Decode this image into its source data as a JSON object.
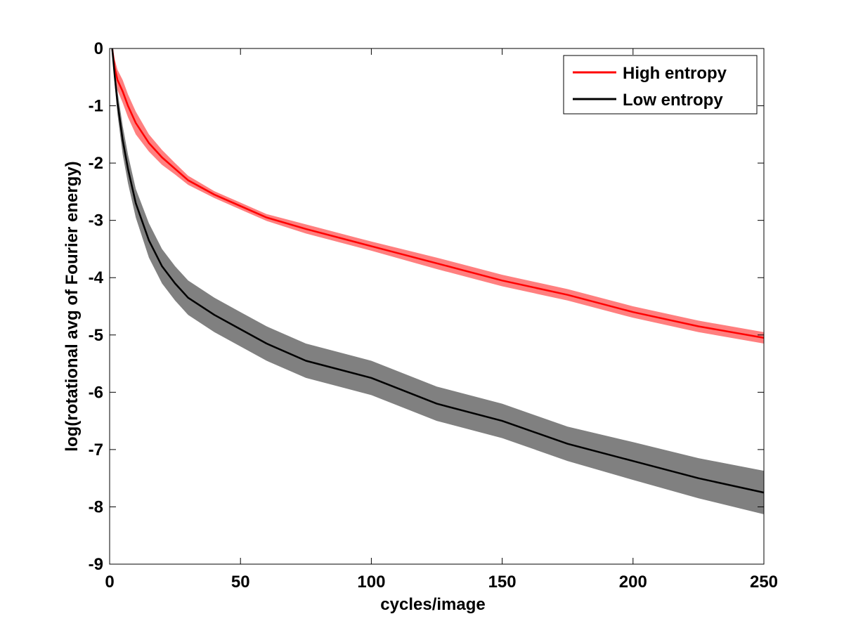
{
  "chart_data": {
    "type": "line",
    "title": "",
    "xlabel": "cycles/image",
    "ylabel": "log(rotational avg of Fourier energy)",
    "xlim": [
      0,
      250
    ],
    "ylim": [
      -9,
      0
    ],
    "xticks": [
      0,
      50,
      100,
      150,
      200,
      250
    ],
    "yticks": [
      0,
      -1,
      -2,
      -3,
      -4,
      -5,
      -6,
      -7,
      -8,
      -9
    ],
    "grid": false,
    "legend_position": "top-right",
    "x": [
      1,
      2,
      3,
      5,
      7,
      10,
      15,
      20,
      25,
      30,
      40,
      50,
      60,
      75,
      100,
      125,
      150,
      175,
      200,
      225,
      250
    ],
    "series": [
      {
        "name": "High entropy",
        "color": "#ff0000",
        "band_color": "#ff7f7f",
        "values": [
          0,
          -0.35,
          -0.55,
          -0.75,
          -1.0,
          -1.3,
          -1.65,
          -1.9,
          -2.1,
          -2.3,
          -2.55,
          -2.75,
          -2.95,
          -3.15,
          -3.45,
          -3.75,
          -4.05,
          -4.3,
          -4.6,
          -4.85,
          -5.05
        ],
        "band_halfwidth": [
          0,
          0.15,
          0.18,
          0.2,
          0.2,
          0.2,
          0.15,
          0.13,
          0.1,
          0.08,
          0.06,
          0.06,
          0.06,
          0.08,
          0.08,
          0.1,
          0.1,
          0.1,
          0.1,
          0.1,
          0.1
        ]
      },
      {
        "name": "Low entropy",
        "color": "#000000",
        "band_color": "#808080",
        "values": [
          0,
          -0.5,
          -0.95,
          -1.6,
          -2.1,
          -2.7,
          -3.35,
          -3.8,
          -4.1,
          -4.35,
          -4.65,
          -4.9,
          -5.15,
          -5.45,
          -5.75,
          -6.2,
          -6.5,
          -6.9,
          -7.2,
          -7.5,
          -7.75
        ],
        "band_halfwidth": [
          0,
          0.15,
          0.2,
          0.25,
          0.25,
          0.25,
          0.3,
          0.3,
          0.3,
          0.3,
          0.3,
          0.3,
          0.3,
          0.3,
          0.3,
          0.3,
          0.3,
          0.3,
          0.33,
          0.35,
          0.38
        ]
      }
    ]
  }
}
